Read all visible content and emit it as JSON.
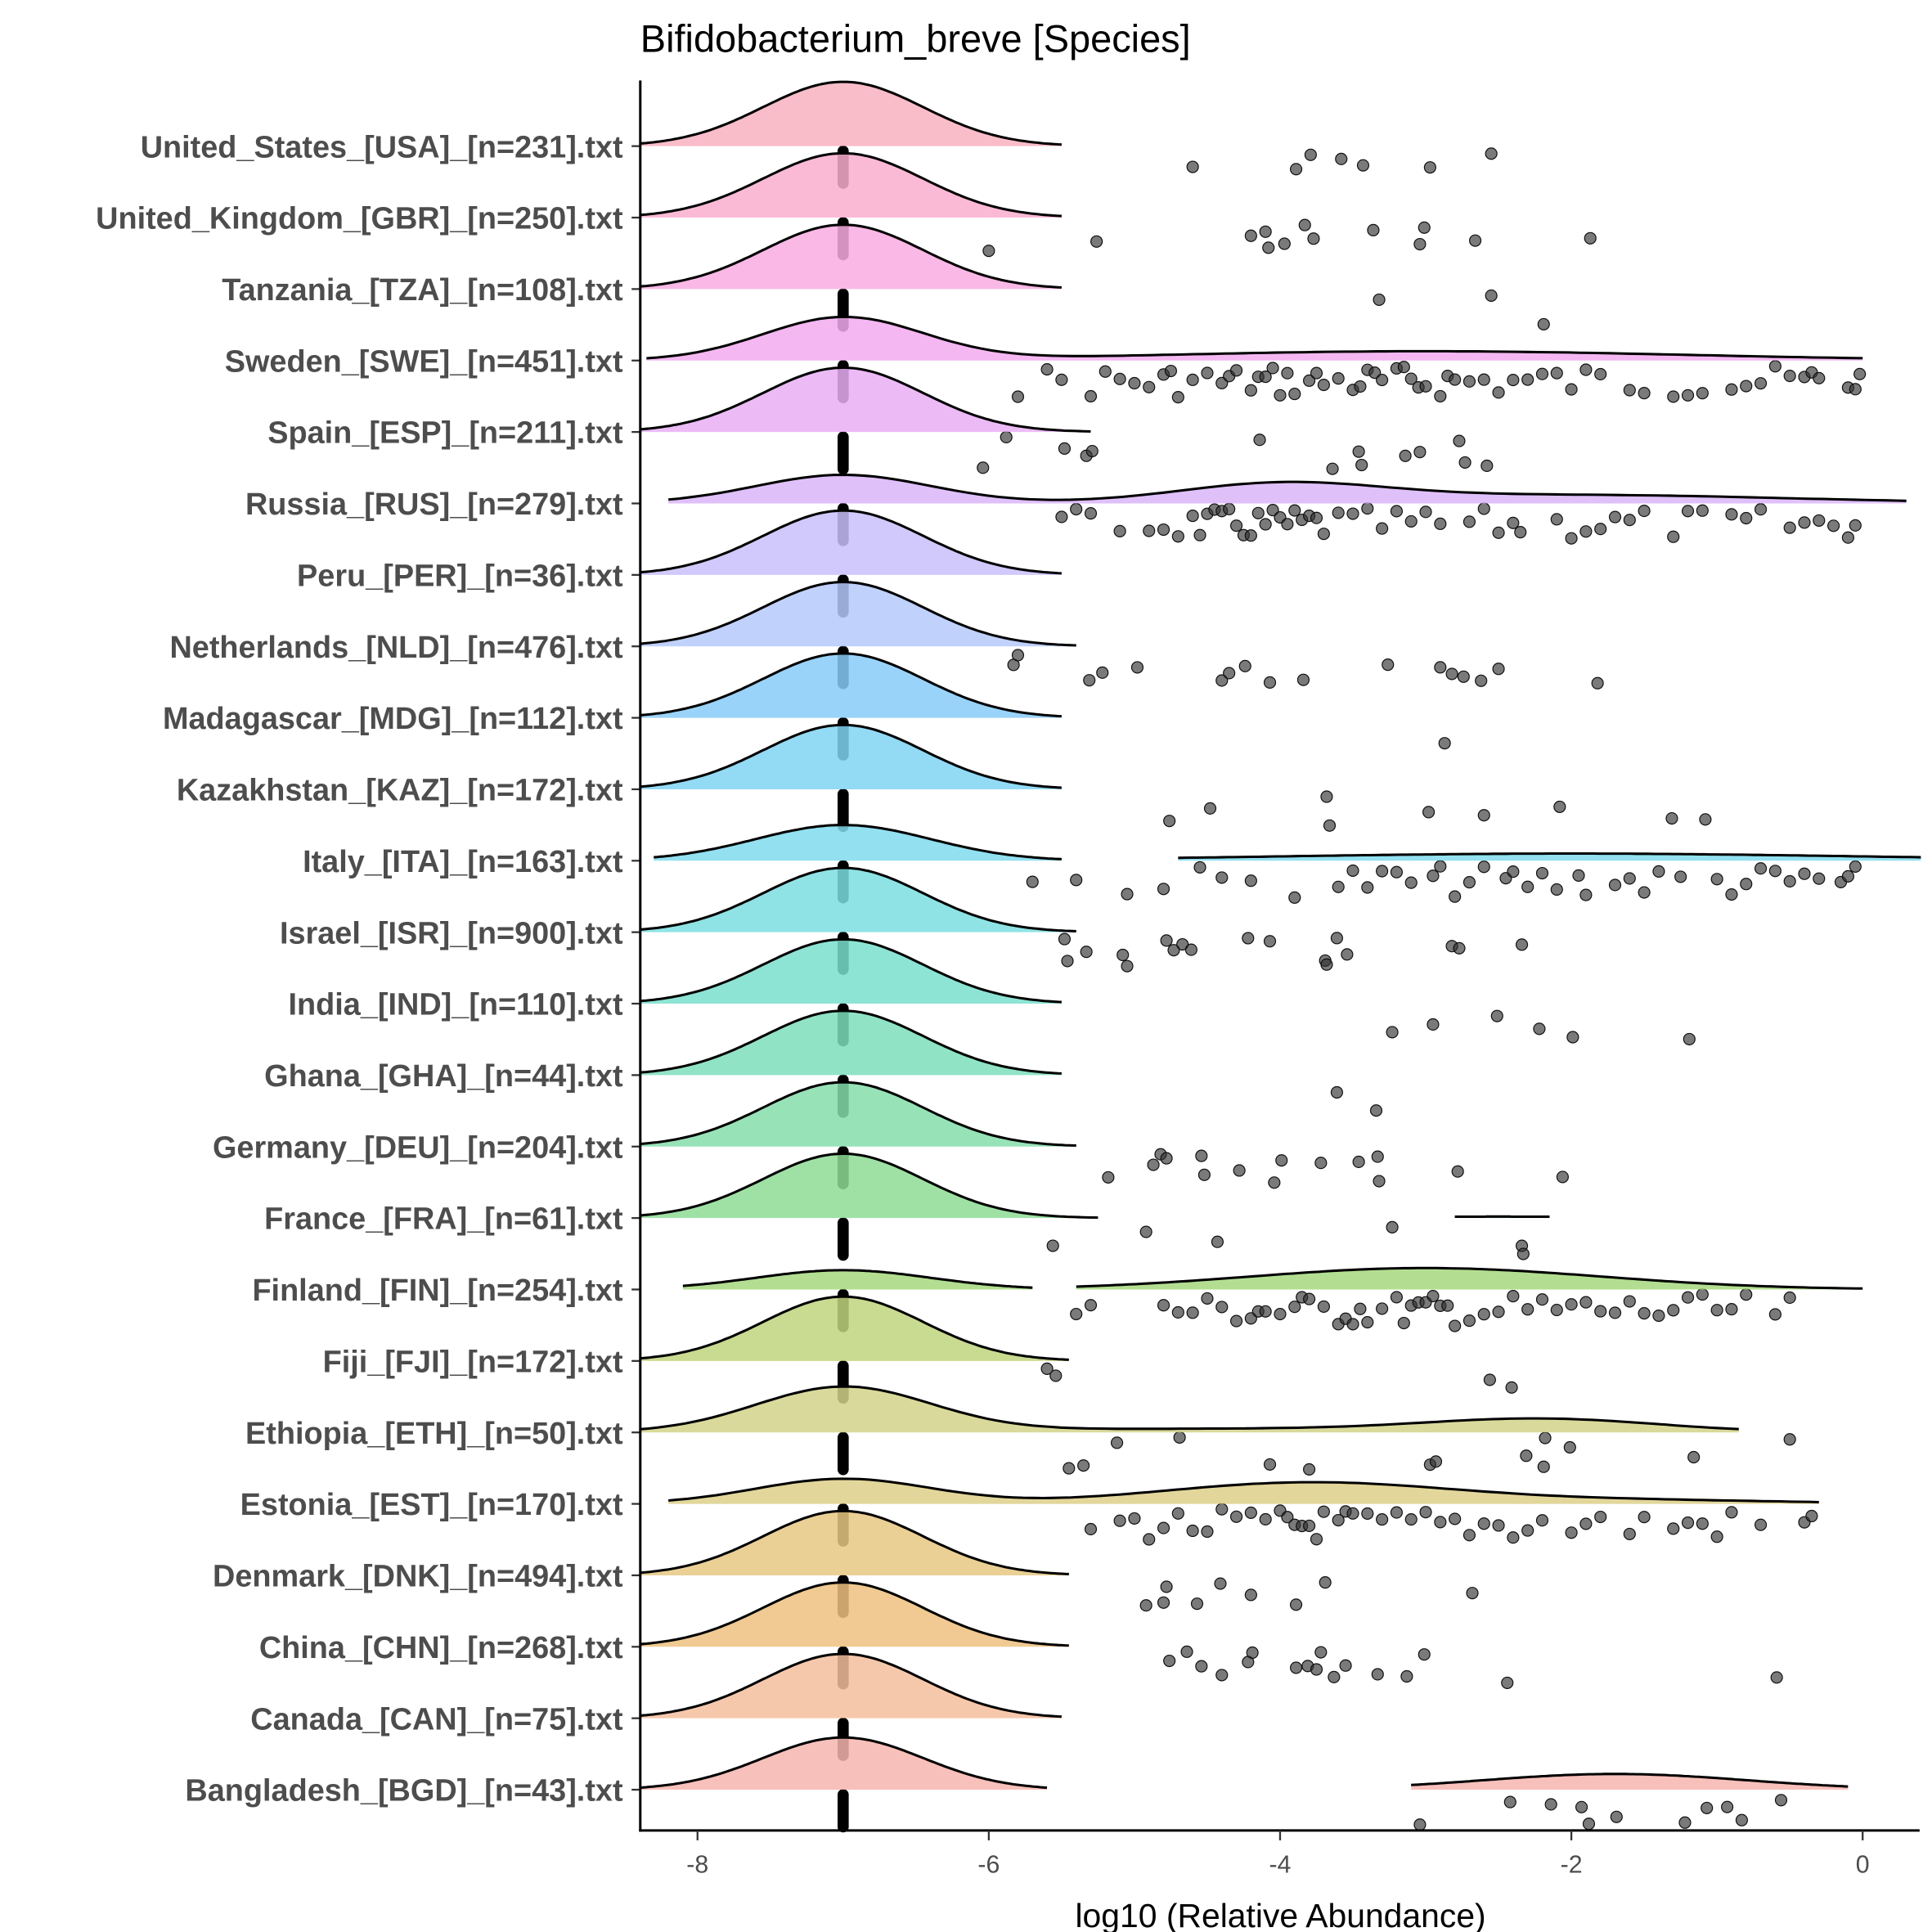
{
  "chart_data": {
    "type": "ridgeline-with-jittered-points",
    "title": "Bifidobacterium_breve [Species]",
    "xlabel": "log10 (Relative Abundance)",
    "ylabel": "",
    "xlim": [
      -8.4,
      0.4
    ],
    "xticks": [
      -8,
      -6,
      -4,
      -2,
      0
    ],
    "xtick_labels": [
      "-8",
      "-6",
      "-4",
      "-2",
      "0"
    ],
    "grid": false,
    "legend": "none",
    "zero_value_marker": -7,
    "rows": [
      {
        "label": "United_States_[USA]_[n=231].txt",
        "color": "#F8B1C0",
        "segments": [
          {
            "from": -8.4,
            "to": -5.5,
            "comps": [
              [
                -7,
                0.55,
                0.9
              ]
            ]
          }
        ],
        "points": [
          -4.6,
          -3.89,
          -3.79,
          -3.58,
          -3.43,
          -2.97,
          -2.55
        ]
      },
      {
        "label": "United_Kingdom_[GBR]_[n=250].txt",
        "color": "#F9AECF",
        "segments": [
          {
            "from": -8.4,
            "to": -5.5,
            "comps": [
              [
                -7,
                0.55,
                0.9
              ]
            ]
          }
        ],
        "points": [
          -6.0,
          -5.26,
          -4.2,
          -4.1,
          -4.08,
          -3.97,
          -3.83,
          -3.77,
          -3.36,
          -3.04,
          -3.01,
          -2.66,
          -1.87
        ]
      },
      {
        "label": "Tanzania_[TZA]_[n=108].txt",
        "color": "#F8ABE0",
        "segments": [
          {
            "from": -8.4,
            "to": -5.5,
            "comps": [
              [
                -7,
                0.55,
                0.9
              ]
            ]
          }
        ],
        "points": [
          -3.32,
          -2.55,
          -2.19
        ]
      },
      {
        "label": "Sweden_[SWE]_[n=451].txt",
        "color": "#F2AAEE",
        "segments": [
          {
            "from": -8.35,
            "to": 0,
            "comps": [
              [
                -7,
                0.55,
                0.6
              ],
              [
                -3,
                1.8,
                0.13
              ]
            ]
          }
        ],
        "points": [
          -5.8,
          -5.6,
          -5.5,
          -5.3,
          -5.2,
          -5.1,
          -5.0,
          -4.9,
          -4.8,
          -4.75,
          -4.7,
          -4.6,
          -4.5,
          -4.4,
          -4.35,
          -4.3,
          -4.2,
          -4.15,
          -4.1,
          -4.05,
          -4.0,
          -3.95,
          -3.9,
          -3.8,
          -3.75,
          -3.7,
          -3.6,
          -3.5,
          -3.45,
          -3.4,
          -3.35,
          -3.3,
          -3.2,
          -3.15,
          -3.1,
          -3.05,
          -3.0,
          -2.9,
          -2.85,
          -2.8,
          -2.7,
          -2.6,
          -2.5,
          -2.4,
          -2.3,
          -2.2,
          -2.1,
          -2.0,
          -1.9,
          -1.8,
          -1.6,
          -1.5,
          -1.3,
          -1.2,
          -1.1,
          -0.9,
          -0.8,
          -0.7,
          -0.6,
          -0.5,
          -0.4,
          -0.35,
          -0.3,
          -0.1,
          -0.05,
          -0.02
        ]
      },
      {
        "label": "Spain_[ESP]_[n=211].txt",
        "color": "#E9AFF5",
        "segments": [
          {
            "from": -8.4,
            "to": -5.3,
            "comps": [
              [
                -7,
                0.55,
                0.9
              ]
            ]
          }
        ],
        "points": [
          -6.04,
          -5.88,
          -5.48,
          -5.33,
          -5.29,
          -4.14,
          -3.64,
          -3.46,
          -3.44,
          -3.14,
          -3.04,
          -2.77,
          -2.73,
          -2.58
        ]
      },
      {
        "label": "Russia_[RUS]_[n=279].txt",
        "color": "#D9B5F8",
        "segments": [
          {
            "from": -8.2,
            "to": 0.3,
            "comps": [
              [
                -7,
                0.6,
                0.4
              ],
              [
                -4,
                0.7,
                0.25
              ],
              [
                -2,
                1.5,
                0.12
              ]
            ]
          }
        ],
        "points": [
          -5.5,
          -5.4,
          -5.3,
          -5.1,
          -4.9,
          -4.8,
          -4.7,
          -4.6,
          -4.55,
          -4.5,
          -4.45,
          -4.4,
          -4.35,
          -4.3,
          -4.25,
          -4.2,
          -4.15,
          -4.1,
          -4.05,
          -4.0,
          -3.95,
          -3.9,
          -3.85,
          -3.8,
          -3.75,
          -3.7,
          -3.6,
          -3.5,
          -3.4,
          -3.3,
          -3.2,
          -3.1,
          -3.0,
          -2.9,
          -2.7,
          -2.6,
          -2.5,
          -2.4,
          -2.35,
          -2.1,
          -2.0,
          -1.9,
          -1.8,
          -1.7,
          -1.6,
          -1.5,
          -1.3,
          -1.2,
          -1.1,
          -0.9,
          -0.8,
          -0.7,
          -0.5,
          -0.4,
          -0.3,
          -0.2,
          -0.1,
          -0.05
        ]
      },
      {
        "label": "Peru_[PER]_[n=36].txt",
        "color": "#C9C0FA",
        "segments": [
          {
            "from": -8.4,
            "to": -5.5,
            "comps": [
              [
                -7,
                0.55,
                0.9
              ]
            ]
          }
        ],
        "points": []
      },
      {
        "label": "Netherlands_[NLD]_[n=476].txt",
        "color": "#B5C9FB",
        "segments": [
          {
            "from": -8.4,
            "to": -5.4,
            "comps": [
              [
                -7,
                0.55,
                0.9
              ]
            ]
          }
        ],
        "points": [
          -5.83,
          -5.8,
          -5.31,
          -5.22,
          -4.98,
          -4.4,
          -4.35,
          -4.24,
          -4.07,
          -3.84,
          -3.26,
          -2.9,
          -2.82,
          -2.74,
          -2.62,
          -2.5,
          -1.82
        ]
      },
      {
        "label": "Madagascar_[MDG]_[n=112].txt",
        "color": "#88CBF8",
        "segments": [
          {
            "from": -8.4,
            "to": -5.5,
            "comps": [
              [
                -7,
                0.55,
                0.9
              ]
            ]
          }
        ],
        "points": [
          -2.87
        ]
      },
      {
        "label": "Kazakhstan_[KAZ]_[n=172].txt",
        "color": "#80D3F3",
        "segments": [
          {
            "from": -8.4,
            "to": -5.5,
            "comps": [
              [
                -7,
                0.55,
                0.9
              ]
            ]
          }
        ],
        "points": [
          -4.76,
          -4.48,
          -3.68,
          -3.66,
          -2.98,
          -2.6,
          -2.08,
          -1.31,
          -1.08
        ]
      },
      {
        "label": "Italy_[ITA]_[n=163].txt",
        "color": "#7FDAED",
        "segments": [
          {
            "from": -8.3,
            "to": -5.5,
            "comps": [
              [
                -7,
                0.6,
                0.5
              ]
            ]
          },
          {
            "from": -4.7,
            "to": 0.4,
            "comps": [
              [
                -2,
                2,
                0.1
              ]
            ]
          }
        ],
        "points": [
          -5.7,
          -5.4,
          -5.05,
          -4.8,
          -4.55,
          -4.4,
          -4.2,
          -3.9,
          -3.6,
          -3.5,
          -3.4,
          -3.3,
          -3.2,
          -3.1,
          -2.95,
          -2.9,
          -2.8,
          -2.7,
          -2.6,
          -2.45,
          -2.4,
          -2.3,
          -2.2,
          -2.1,
          -1.95,
          -1.9,
          -1.7,
          -1.6,
          -1.5,
          -1.4,
          -1.25,
          -1.0,
          -0.9,
          -0.8,
          -0.7,
          -0.6,
          -0.5,
          -0.4,
          -0.3,
          -0.15,
          -0.1,
          -0.05
        ]
      },
      {
        "label": "Israel_[ISR]_[n=900].txt",
        "color": "#7DDEE1",
        "segments": [
          {
            "from": -8.4,
            "to": -5.4,
            "comps": [
              [
                -7,
                0.55,
                0.9
              ]
            ]
          }
        ],
        "points": [
          -5.48,
          -5.46,
          -5.33,
          -5.08,
          -5.05,
          -4.78,
          -4.73,
          -4.67,
          -4.61,
          -4.22,
          -4.07,
          -3.69,
          -3.68,
          -3.61,
          -3.54,
          -2.82,
          -2.77,
          -2.34
        ]
      },
      {
        "label": "India_[IND]_[n=110].txt",
        "color": "#7ADFCC",
        "segments": [
          {
            "from": -8.4,
            "to": -5.5,
            "comps": [
              [
                -7,
                0.55,
                0.9
              ]
            ]
          }
        ],
        "points": [
          -3.23,
          -2.95,
          -2.51,
          -2.22,
          -1.99,
          -1.19
        ]
      },
      {
        "label": "Ghana_[GHA]_[n=44].txt",
        "color": "#7EDEBB",
        "segments": [
          {
            "from": -8.4,
            "to": -5.5,
            "comps": [
              [
                -7,
                0.55,
                0.9
              ]
            ]
          }
        ],
        "points": [
          -3.61,
          -3.34
        ]
      },
      {
        "label": "Germany_[DEU]_[n=204].txt",
        "color": "#86DDAB",
        "segments": [
          {
            "from": -8.4,
            "to": -5.4,
            "comps": [
              [
                -7,
                0.55,
                0.9
              ]
            ]
          }
        ],
        "points": [
          -5.18,
          -4.87,
          -4.82,
          -4.78,
          -4.54,
          -4.52,
          -4.28,
          -4.04,
          -3.99,
          -3.72,
          -3.46,
          -3.33,
          -3.32,
          -2.78,
          -2.06
        ]
      },
      {
        "label": "France_[FRA]_[n=61].txt",
        "color": "#8EDC95",
        "segments": [
          {
            "from": -8.4,
            "to": -5.25,
            "comps": [
              [
                -7,
                0.55,
                0.9
              ]
            ]
          },
          {
            "from": -2.8,
            "to": -2.15,
            "comps": [
              [
                -2.5,
                1,
                0.02
              ]
            ]
          }
        ],
        "points": [
          -5.56,
          -4.92,
          -4.43,
          -3.23,
          -2.34,
          -2.33
        ]
      },
      {
        "label": "Finland_[FIN]_[n=254].txt",
        "color": "#A6D87E",
        "segments": [
          {
            "from": -8.1,
            "to": -5.7,
            "comps": [
              [
                -7,
                0.6,
                0.27
              ]
            ]
          },
          {
            "from": -5.4,
            "to": 0,
            "comps": [
              [
                -3,
                1.2,
                0.3
              ]
            ]
          }
        ],
        "points": [
          -5.4,
          -5.3,
          -4.8,
          -4.7,
          -4.6,
          -4.5,
          -4.4,
          -4.3,
          -4.2,
          -4.15,
          -4.1,
          -4.0,
          -3.9,
          -3.85,
          -3.8,
          -3.7,
          -3.6,
          -3.55,
          -3.5,
          -3.45,
          -3.4,
          -3.3,
          -3.2,
          -3.15,
          -3.1,
          -3.05,
          -3.0,
          -2.95,
          -2.9,
          -2.85,
          -2.8,
          -2.7,
          -2.6,
          -2.5,
          -2.4,
          -2.3,
          -2.2,
          -2.1,
          -2.0,
          -1.9,
          -1.8,
          -1.7,
          -1.6,
          -1.5,
          -1.4,
          -1.3,
          -1.2,
          -1.1,
          -1.0,
          -0.9,
          -0.8,
          -0.6,
          -0.5
        ]
      },
      {
        "label": "Fiji_[FJI]_[n=172].txt",
        "color": "#C0D37E",
        "segments": [
          {
            "from": -8.4,
            "to": -5.45,
            "comps": [
              [
                -7,
                0.55,
                0.9
              ]
            ]
          }
        ],
        "points": [
          -5.6,
          -5.54,
          -2.56,
          -2.41
        ]
      },
      {
        "label": "Ethiopia_[ETH]_[n=50].txt",
        "color": "#D2D28A",
        "segments": [
          {
            "from": -8.4,
            "to": -0.85,
            "comps": [
              [
                -7,
                0.6,
                0.63
              ],
              [
                -2.2,
                0.8,
                0.18
              ],
              [
                -4.5,
                1.5,
                0.05
              ]
            ]
          }
        ],
        "points": [
          -5.45,
          -5.35,
          -5.12,
          -4.69,
          -4.07,
          -3.8,
          -2.97,
          -2.93,
          -2.31,
          -2.19,
          -2.18,
          -2.01,
          -1.16,
          -0.5
        ]
      },
      {
        "label": "Estonia_[EST]_[n=170].txt",
        "color": "#DDCF88",
        "segments": [
          {
            "from": -8.2,
            "to": -0.3,
            "comps": [
              [
                -7,
                0.6,
                0.35
              ],
              [
                -3.8,
                1,
                0.3
              ],
              [
                -1.5,
                1,
                0.05
              ]
            ]
          }
        ],
        "points": [
          -5.3,
          -5.1,
          -5.0,
          -4.9,
          -4.8,
          -4.7,
          -4.6,
          -4.5,
          -4.4,
          -4.3,
          -4.2,
          -4.1,
          -4.0,
          -3.95,
          -3.9,
          -3.85,
          -3.8,
          -3.75,
          -3.7,
          -3.6,
          -3.55,
          -3.5,
          -3.4,
          -3.3,
          -3.2,
          -3.1,
          -3.0,
          -2.9,
          -2.8,
          -2.7,
          -2.6,
          -2.5,
          -2.4,
          -2.3,
          -2.2,
          -2.0,
          -1.9,
          -1.8,
          -1.6,
          -1.5,
          -1.3,
          -1.2,
          -1.1,
          -1.0,
          -0.9,
          -0.7,
          -0.4,
          -0.35
        ]
      },
      {
        "label": "Denmark_[DNK]_[n=494].txt",
        "color": "#E6C882",
        "segments": [
          {
            "from": -8.4,
            "to": -5.45,
            "comps": [
              [
                -7,
                0.55,
                0.9
              ]
            ]
          }
        ],
        "points": [
          -4.92,
          -4.8,
          -4.78,
          -4.57,
          -4.41,
          -4.2,
          -3.89,
          -3.69,
          -2.68
        ]
      },
      {
        "label": "China_[CHN]_[n=268].txt",
        "color": "#EDC17F",
        "segments": [
          {
            "from": -8.4,
            "to": -5.45,
            "comps": [
              [
                -7,
                0.55,
                0.9
              ]
            ]
          }
        ],
        "points": [
          -4.76,
          -4.64,
          -4.54,
          -4.4,
          -4.22,
          -4.19,
          -3.89,
          -3.81,
          -3.75,
          -3.72,
          -3.63,
          -3.55,
          -3.33,
          -3.13,
          -3.01,
          -2.44,
          -0.59
        ]
      },
      {
        "label": "Canada_[CAN]_[n=75].txt",
        "color": "#F5BE9C",
        "segments": [
          {
            "from": -8.4,
            "to": -5.5,
            "comps": [
              [
                -7,
                0.55,
                0.9
              ]
            ]
          }
        ],
        "points": []
      },
      {
        "label": "Bangladesh_[BGD]_[n=43].txt",
        "color": "#F7B5AE",
        "segments": [
          {
            "from": -8.4,
            "to": -5.6,
            "comps": [
              [
                -7,
                0.55,
                0.73
              ]
            ]
          },
          {
            "from": -3.1,
            "to": -0.1,
            "comps": [
              [
                -1.7,
                0.9,
                0.22
              ]
            ]
          }
        ],
        "points": [
          -3.04,
          -2.42,
          -2.14,
          -1.93,
          -1.88,
          -1.69,
          -1.22,
          -1.07,
          -0.93,
          -0.83,
          -0.56
        ]
      }
    ]
  }
}
